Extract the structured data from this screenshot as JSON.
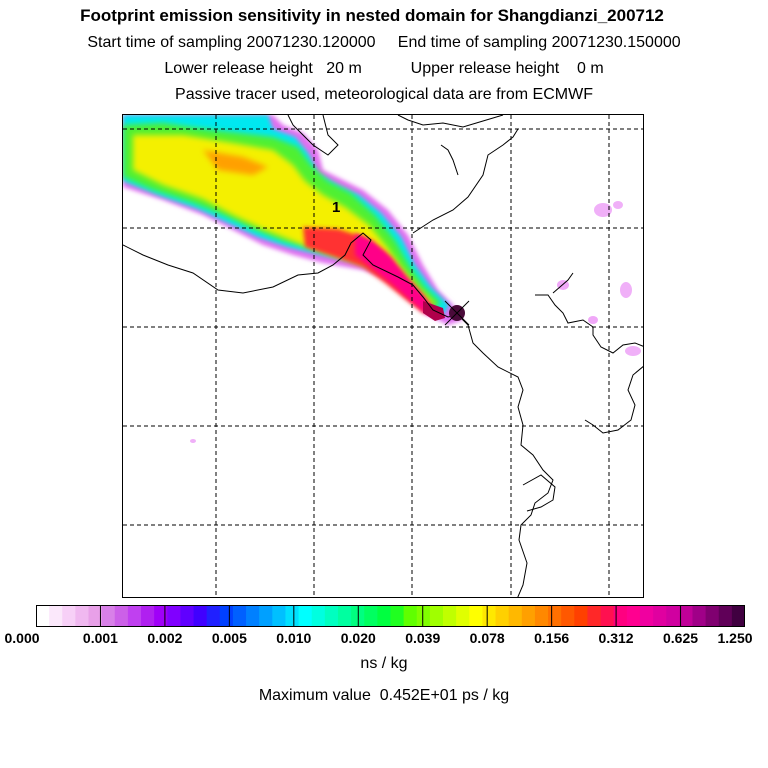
{
  "header": {
    "title": "Footprint emission sensitivity in nested domain for Shangdianzi_200712",
    "line2": "Start time of sampling 20071230.120000     End time of sampling 20071230.150000",
    "line3": "Lower release height   20 m           Upper release height    0 m",
    "line4": "Passive tracer used, meteorological data are from ECMWF"
  },
  "map": {
    "station_marker_label": "1",
    "plume_colors": [
      "#e18cf0",
      "#ff00ff",
      "#00ffff",
      "#00ff80",
      "#80ff00",
      "#c8ff00",
      "#ffff00",
      "#ff8000",
      "#ff2a2a",
      "#ff0080",
      "#5a1a4a"
    ]
  },
  "colorbar": {
    "tick_labels": [
      "0.000",
      "0.001",
      "0.002",
      "0.005",
      "0.010",
      "0.020",
      "0.039",
      "0.078",
      "0.156",
      "0.312",
      "0.625",
      "1.250"
    ],
    "colors": [
      "#ffffff",
      "#fbe8fb",
      "#f7d0f7",
      "#f0b8f0",
      "#e8a0e8",
      "#d880e8",
      "#cc60e8",
      "#c040f0",
      "#b020f0",
      "#a000f8",
      "#8000ff",
      "#6000ff",
      "#4000ff",
      "#2020ff",
      "#0040ff",
      "#0060ff",
      "#0080ff",
      "#00a0ff",
      "#00c0ff",
      "#00e0ff",
      "#00ffff",
      "#00ffe0",
      "#00ffc0",
      "#00ffa0",
      "#00ff80",
      "#00ff60",
      "#00ff40",
      "#20ff20",
      "#60ff00",
      "#80ff00",
      "#a0ff00",
      "#c0ff00",
      "#e0ff00",
      "#ffff00",
      "#ffe800",
      "#ffd000",
      "#ffb800",
      "#ffa000",
      "#ff8800",
      "#ff7000",
      "#ff5800",
      "#ff4000",
      "#ff2828",
      "#ff1050",
      "#ff0080",
      "#ff0090",
      "#f000a0",
      "#e000a0",
      "#d000a0",
      "#c00098",
      "#a00088",
      "#800070",
      "#600058",
      "#400040"
    ],
    "units": "ns / kg",
    "max_value": "Maximum value  0.452E+01 ps / kg"
  }
}
